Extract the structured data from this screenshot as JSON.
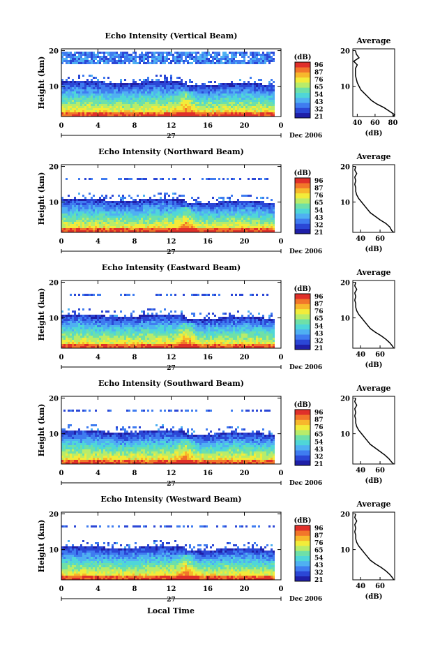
{
  "colors": {
    "palette": [
      "#1f1fa8",
      "#2b47d6",
      "#3f7cf0",
      "#4fb0f2",
      "#4fd6d8",
      "#6ee0a8",
      "#b8ec6a",
      "#f2ec3a",
      "#f7b82c",
      "#f2762a",
      "#e0302a"
    ],
    "axis": "#000000",
    "profile_line": "#000000"
  },
  "footer": {
    "xlabel": "Local Time"
  },
  "chart_data": [
    {
      "type": "heatmap",
      "title": "Echo Intensity (Vertical Beam)",
      "ylabel": "Height (km)",
      "ylim": [
        1.5,
        20.5
      ],
      "yticks": [
        "20",
        "10"
      ],
      "xlim": [
        0,
        24
      ],
      "xticks": [
        "0",
        "4",
        "8",
        "12",
        "16",
        "20",
        "0"
      ],
      "date_tick": "27",
      "date_label": "Dec 2006",
      "colorbar": {
        "unit": "(dB)",
        "labels": [
          "96",
          "87",
          "76",
          "65",
          "54",
          "43",
          "32",
          "21"
        ]
      },
      "profile": {
        "title": "Average",
        "xlabel": "(dB)",
        "xticks": [
          "40",
          "60",
          "80"
        ],
        "xlim": [
          35,
          82
        ],
        "yticks": [
          "20",
          "10"
        ],
        "heights": [
          1.5,
          2,
          3,
          4,
          5,
          6,
          7,
          8,
          9,
          10,
          11,
          12,
          13,
          14,
          15,
          16,
          17,
          18,
          19,
          20
        ],
        "values": [
          80,
          82,
          76,
          70,
          62,
          56,
          52,
          48,
          44,
          42,
          40,
          39,
          38,
          38,
          38,
          40,
          36,
          42,
          39,
          38
        ]
      }
    },
    {
      "type": "heatmap",
      "title": "Echo Intensity (Northward Beam)",
      "ylabel": "Height (km)",
      "ylim": [
        1.5,
        20.5
      ],
      "yticks": [
        "20",
        "10"
      ],
      "xlim": [
        0,
        24
      ],
      "xticks": [
        "0",
        "4",
        "8",
        "12",
        "16",
        "20",
        "0"
      ],
      "date_tick": "27",
      "date_label": "Dec 2006",
      "colorbar": {
        "unit": "(dB)",
        "labels": [
          "96",
          "87",
          "76",
          "65",
          "54",
          "43",
          "32",
          "21"
        ]
      },
      "profile": {
        "title": "Average",
        "xlabel": "(dB)",
        "xticks": [
          "40",
          "60"
        ],
        "xlim": [
          32,
          75
        ],
        "yticks": [
          "20",
          "10"
        ],
        "heights": [
          1.5,
          2,
          3,
          4,
          5,
          6,
          7,
          8,
          9,
          10,
          11,
          12,
          13,
          14,
          15,
          16,
          17,
          18,
          19,
          20
        ],
        "values": [
          74,
          72,
          70,
          66,
          60,
          55,
          50,
          47,
          44,
          41,
          38,
          36,
          35,
          35,
          34,
          35,
          34,
          36,
          34,
          35
        ]
      }
    },
    {
      "type": "heatmap",
      "title": "Echo Intensity (Eastward Beam)",
      "ylabel": "Height (km)",
      "ylim": [
        1.5,
        20.5
      ],
      "yticks": [
        "20",
        "10"
      ],
      "xlim": [
        0,
        24
      ],
      "xticks": [
        "0",
        "4",
        "8",
        "12",
        "16",
        "20",
        "0"
      ],
      "date_tick": "27",
      "date_label": "Dec 2006",
      "colorbar": {
        "unit": "(dB)",
        "labels": [
          "96",
          "87",
          "76",
          "65",
          "54",
          "43",
          "32",
          "21"
        ]
      },
      "profile": {
        "title": "Average",
        "xlabel": "(dB)",
        "xticks": [
          "40",
          "60"
        ],
        "xlim": [
          32,
          75
        ],
        "yticks": [
          "20",
          "10"
        ],
        "heights": [
          1.5,
          2,
          3,
          4,
          5,
          6,
          7,
          8,
          9,
          10,
          11,
          12,
          13,
          14,
          15,
          16,
          17,
          18,
          19,
          20
        ],
        "values": [
          74,
          73,
          70,
          66,
          61,
          55,
          50,
          47,
          44,
          41,
          38,
          36,
          35,
          35,
          34,
          35,
          34,
          36,
          34,
          35
        ]
      }
    },
    {
      "type": "heatmap",
      "title": "Echo Intensity (Southward Beam)",
      "ylabel": "Height (km)",
      "ylim": [
        1.5,
        20.5
      ],
      "yticks": [
        "20",
        "10"
      ],
      "xlim": [
        0,
        24
      ],
      "xticks": [
        "0",
        "4",
        "8",
        "12",
        "16",
        "20",
        "0"
      ],
      "date_tick": "27",
      "date_label": "Dec 2006",
      "colorbar": {
        "unit": "(dB)",
        "labels": [
          "96",
          "87",
          "76",
          "65",
          "54",
          "43",
          "32",
          "21"
        ]
      },
      "profile": {
        "title": "Average",
        "xlabel": "(dB)",
        "xticks": [
          "40",
          "60"
        ],
        "xlim": [
          32,
          75
        ],
        "yticks": [
          "20",
          "10"
        ],
        "heights": [
          1.5,
          2,
          3,
          4,
          5,
          6,
          7,
          8,
          9,
          10,
          11,
          12,
          13,
          14,
          15,
          16,
          17,
          18,
          19,
          20
        ],
        "values": [
          74,
          72,
          69,
          65,
          60,
          55,
          50,
          47,
          44,
          41,
          38,
          36,
          35,
          35,
          34,
          35,
          34,
          36,
          34,
          35
        ]
      }
    },
    {
      "type": "heatmap",
      "title": "Echo Intensity (Westward Beam)",
      "ylabel": "Height (km)",
      "ylim": [
        1.5,
        20.5
      ],
      "yticks": [
        "20",
        "10"
      ],
      "xlim": [
        0,
        24
      ],
      "xticks": [
        "0",
        "4",
        "8",
        "12",
        "16",
        "20",
        "0"
      ],
      "date_tick": "27",
      "date_label": "Dec 2006",
      "colorbar": {
        "unit": "(dB)",
        "labels": [
          "96",
          "87",
          "76",
          "65",
          "54",
          "43",
          "32",
          "21"
        ]
      },
      "profile": {
        "title": "Average",
        "xlabel": "(dB)",
        "xticks": [
          "40",
          "60"
        ],
        "xlim": [
          32,
          75
        ],
        "yticks": [
          "20",
          "10"
        ],
        "heights": [
          1.5,
          2,
          3,
          4,
          5,
          6,
          7,
          8,
          9,
          10,
          11,
          12,
          13,
          14,
          15,
          16,
          17,
          18,
          19,
          20
        ],
        "values": [
          74,
          73,
          70,
          66,
          61,
          55,
          50,
          47,
          44,
          41,
          38,
          36,
          35,
          35,
          34,
          35,
          34,
          36,
          34,
          35
        ]
      }
    }
  ]
}
